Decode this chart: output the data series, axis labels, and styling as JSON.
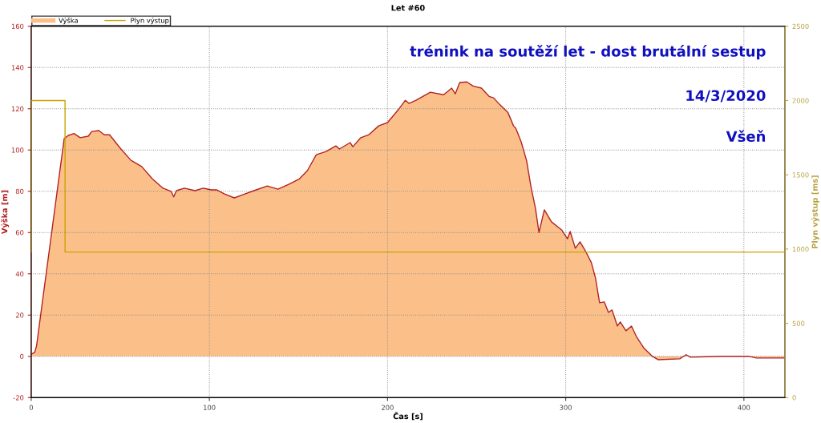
{
  "chart_data": {
    "type": "area",
    "title": "Let #60",
    "xlabel": "Čas [s]",
    "ylabel": "Výška [m]",
    "y2label": "Plyn výstup [ms]",
    "series": [
      {
        "name": "Výška",
        "color": "#fbc08a",
        "x": [
          0,
          2,
          3,
          18.5,
          20.7,
          24,
          27.5,
          32,
          34,
          38,
          41,
          44,
          50,
          56,
          62,
          68,
          74,
          78.5,
          80,
          81.5,
          86,
          92,
          96.5,
          101,
          104,
          108.5,
          114,
          119,
          125,
          132.5,
          138.5,
          144.5,
          150.5,
          155,
          160,
          165.5,
          171,
          173,
          179,
          180.5,
          185,
          189.5,
          195,
          200,
          206,
          210,
          212,
          216,
          224,
          231.5,
          236,
          238,
          240.5,
          244.5,
          248,
          252.7,
          257,
          259.5,
          263,
          267.5,
          270.7,
          272,
          275,
          278,
          280.5,
          283,
          285,
          288,
          292,
          297.7,
          301,
          302.5,
          305.4,
          308,
          311,
          314.4,
          316.7,
          319,
          321.6,
          324,
          326,
          329,
          330.6,
          333.8,
          336.9,
          339.6,
          344,
          348.6,
          351.8,
          364,
          367.6,
          370,
          388,
          403,
          407,
          423
        ],
        "values": [
          1,
          2,
          5,
          105.5,
          107,
          108,
          106,
          106.7,
          109,
          109.4,
          107.4,
          107.4,
          100.9,
          95,
          92,
          86,
          81.5,
          80,
          77.3,
          80.3,
          81.5,
          80.3,
          81.5,
          80.7,
          80.7,
          78.7,
          76.8,
          78.4,
          80.3,
          82.6,
          81,
          83.4,
          86,
          90,
          97.7,
          99.3,
          102,
          100.5,
          103.6,
          101.6,
          106,
          107.4,
          111.7,
          113.3,
          119.5,
          124.1,
          122.6,
          124.1,
          128,
          126.8,
          130,
          127.2,
          132.7,
          133,
          131,
          130,
          126,
          125.3,
          122,
          118.3,
          111.7,
          110.5,
          104,
          95,
          82.2,
          71.8,
          60,
          71,
          65.2,
          61.3,
          57,
          60.5,
          52.4,
          55.5,
          51.2,
          45.4,
          38,
          26,
          26.4,
          21.3,
          22.5,
          14.7,
          16.7,
          12.4,
          14.7,
          9.7,
          3.9,
          0,
          -1.6,
          -1.2,
          0.8,
          -0.4,
          0,
          0,
          -0.8,
          -0.8
        ]
      },
      {
        "name": "Plyn výstup",
        "type": "step",
        "axis": "y2",
        "color": "#c9a400",
        "x": [
          0,
          0,
          19,
          423
        ],
        "values": [
          980,
          2000,
          980,
          980
        ]
      }
    ],
    "xlim": [
      0,
      423
    ],
    "xticks": [
      0,
      100,
      200,
      300,
      400
    ],
    "ylim": [
      -20,
      160
    ],
    "yticks": [
      -20,
      0,
      20,
      40,
      60,
      80,
      100,
      120,
      140,
      160
    ],
    "y2lim": [
      0,
      2500
    ],
    "y2ticks": [
      0,
      500,
      1000,
      1500,
      2000,
      2500
    ],
    "annotations": [
      "trénink na soutěží let - dost brutální sestup",
      "14/3/2020",
      "Všeň"
    ],
    "grid": true,
    "legend": "top left"
  }
}
